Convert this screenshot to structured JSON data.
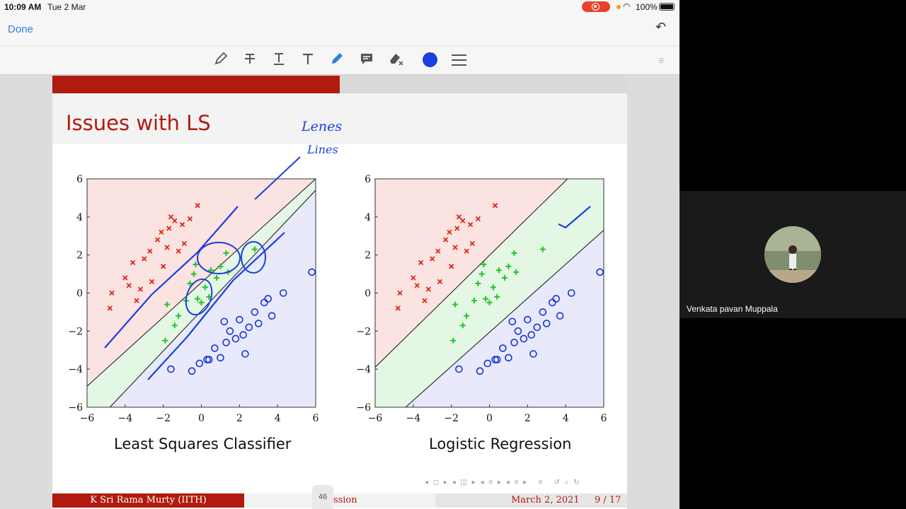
{
  "status_bar": {
    "time": "10:09 AM",
    "date": "Tue 2 Mar",
    "battery": "100%"
  },
  "top_bar": {
    "done_label": "Done"
  },
  "slide": {
    "title": "Issues with LS",
    "plots": [
      {
        "caption": "Least Squares Classifier"
      },
      {
        "caption": "Logistic Regression"
      }
    ],
    "footer": {
      "author": "K Sri Rama Murty (IITH)",
      "topic": "ression",
      "date": "March 2, 2021",
      "page": "9 / 17"
    },
    "side_tab": "46"
  },
  "annotations": {
    "handwritten_1": "Lenes",
    "handwritten_2": "Lines"
  },
  "video": {
    "participant_name": "Venkata pavan Muppala"
  },
  "chart_data": [
    {
      "type": "scatter",
      "title": "Least Squares Classifier",
      "xlim": [
        -6,
        6
      ],
      "ylim": [
        -6,
        6
      ],
      "xticks": [
        "−6",
        "−4",
        "−2",
        "0",
        "2",
        "4",
        "6"
      ],
      "yticks": [
        "6",
        "4",
        "2",
        "0",
        "−2",
        "−4",
        "−6"
      ],
      "series": [
        {
          "marker": "x",
          "color": "#e0261a",
          "points": [
            [
              -4.7,
              0
            ],
            [
              -4.8,
              -0.8
            ],
            [
              -4,
              0.8
            ],
            [
              -3.6,
              1.6
            ],
            [
              -3.8,
              0.4
            ],
            [
              -3,
              1.8
            ],
            [
              -2.7,
              2.2
            ],
            [
              -2.3,
              2.8
            ],
            [
              -2.1,
              3.2
            ],
            [
              -1.7,
              3.4
            ],
            [
              -1.4,
              3.8
            ],
            [
              -1,
              3.6
            ],
            [
              -0.6,
              3.9
            ],
            [
              -1.6,
              4
            ],
            [
              -0.2,
              4.6
            ],
            [
              -2,
              1.4
            ],
            [
              -2.6,
              0.6
            ],
            [
              -3.2,
              0.2
            ],
            [
              -3.4,
              -0.4
            ],
            [
              -1.8,
              2.4
            ],
            [
              -0.9,
              2.6
            ],
            [
              -1.2,
              2.2
            ]
          ]
        },
        {
          "marker": "+",
          "color": "#22c42a",
          "points": [
            [
              -1.9,
              -2.5
            ],
            [
              -1.8,
              -0.6
            ],
            [
              -1.2,
              -1.2
            ],
            [
              -0.8,
              -0.4
            ],
            [
              -0.6,
              0.5
            ],
            [
              -0.4,
              1
            ],
            [
              -0.2,
              -0.3
            ],
            [
              0,
              -0.5
            ],
            [
              0.2,
              0.3
            ],
            [
              0.5,
              1.2
            ],
            [
              0.8,
              0.8
            ],
            [
              1,
              1.4
            ],
            [
              1.3,
              2.1
            ],
            [
              1.4,
              1.1
            ],
            [
              2.8,
              2.3
            ],
            [
              -0.3,
              1.5
            ],
            [
              0.4,
              -0.2
            ],
            [
              -1.4,
              -1.7
            ]
          ]
        },
        {
          "marker": "o",
          "color": "#1a33d6",
          "points": [
            [
              -1.6,
              -4
            ],
            [
              -0.5,
              -4.1
            ],
            [
              -0.1,
              -3.7
            ],
            [
              0.4,
              -3.5
            ],
            [
              0.7,
              -2.9
            ],
            [
              1,
              -3.4
            ],
            [
              1.3,
              -2.6
            ],
            [
              1.5,
              -2
            ],
            [
              1.8,
              -2.4
            ],
            [
              2,
              -1.4
            ],
            [
              2.2,
              -2.2
            ],
            [
              2.5,
              -1.8
            ],
            [
              2.8,
              -1
            ],
            [
              3,
              -1.6
            ],
            [
              3.3,
              -0.5
            ],
            [
              3.5,
              -0.3
            ],
            [
              3.7,
              -1.2
            ],
            [
              4.3,
              0
            ],
            [
              5.8,
              1.1
            ],
            [
              1.2,
              -1.5
            ],
            [
              2.3,
              -3.2
            ],
            [
              0.3,
              -3.5
            ]
          ]
        }
      ]
    },
    {
      "type": "scatter",
      "title": "Logistic Regression",
      "xlim": [
        -6,
        6
      ],
      "ylim": [
        -6,
        6
      ],
      "xticks": [
        "−6",
        "−4",
        "−2",
        "0",
        "2",
        "4",
        "6"
      ],
      "yticks": [
        "6",
        "4",
        "2",
        "0",
        "−2",
        "−4",
        "−6"
      ],
      "series": [
        {
          "marker": "x",
          "color": "#e0261a",
          "points": [
            [
              -4.7,
              0
            ],
            [
              -4.8,
              -0.8
            ],
            [
              -4,
              0.8
            ],
            [
              -3.6,
              1.6
            ],
            [
              -3.8,
              0.4
            ],
            [
              -3,
              1.8
            ],
            [
              -2.7,
              2.2
            ],
            [
              -2.3,
              2.8
            ],
            [
              -2.1,
              3.2
            ],
            [
              -1.7,
              3.4
            ],
            [
              -1.4,
              3.8
            ],
            [
              -1,
              3.6
            ],
            [
              -0.6,
              3.9
            ],
            [
              -1.6,
              4
            ],
            [
              0.3,
              4.6
            ],
            [
              -2,
              1.4
            ],
            [
              -2.6,
              0.6
            ],
            [
              -3.2,
              0.2
            ],
            [
              -3.4,
              -0.4
            ],
            [
              -1.8,
              2.4
            ],
            [
              -0.9,
              2.6
            ],
            [
              -1.2,
              2.2
            ]
          ]
        },
        {
          "marker": "+",
          "color": "#22c42a",
          "points": [
            [
              -1.9,
              -2.5
            ],
            [
              -1.8,
              -0.6
            ],
            [
              -1.2,
              -1.2
            ],
            [
              -0.8,
              -0.4
            ],
            [
              -0.6,
              0.5
            ],
            [
              -0.4,
              1
            ],
            [
              -0.2,
              -0.3
            ],
            [
              0,
              -0.5
            ],
            [
              0.2,
              0.3
            ],
            [
              0.5,
              1.2
            ],
            [
              0.8,
              0.8
            ],
            [
              1,
              1.4
            ],
            [
              1.3,
              2.1
            ],
            [
              1.4,
              1.1
            ],
            [
              2.8,
              2.3
            ],
            [
              -0.3,
              1.5
            ],
            [
              0.4,
              -0.2
            ],
            [
              -1.4,
              -1.7
            ]
          ]
        },
        {
          "marker": "o",
          "color": "#1a33d6",
          "points": [
            [
              -1.6,
              -4
            ],
            [
              -0.5,
              -4.1
            ],
            [
              -0.1,
              -3.7
            ],
            [
              0.4,
              -3.5
            ],
            [
              0.7,
              -2.9
            ],
            [
              1,
              -3.4
            ],
            [
              1.3,
              -2.6
            ],
            [
              1.5,
              -2
            ],
            [
              1.8,
              -2.4
            ],
            [
              2,
              -1.4
            ],
            [
              2.2,
              -2.2
            ],
            [
              2.5,
              -1.8
            ],
            [
              2.8,
              -1
            ],
            [
              3,
              -1.6
            ],
            [
              3.3,
              -0.5
            ],
            [
              3.5,
              -0.3
            ],
            [
              3.7,
              -1.2
            ],
            [
              4.3,
              0
            ],
            [
              5.8,
              1.1
            ],
            [
              1.2,
              -1.5
            ],
            [
              2.3,
              -3.2
            ],
            [
              0.3,
              -3.5
            ]
          ]
        }
      ]
    }
  ],
  "colors": {
    "accent_red": "#b11b0f",
    "ios_blue": "#2f7ee6",
    "pen_blue": "#1a3fe0"
  }
}
